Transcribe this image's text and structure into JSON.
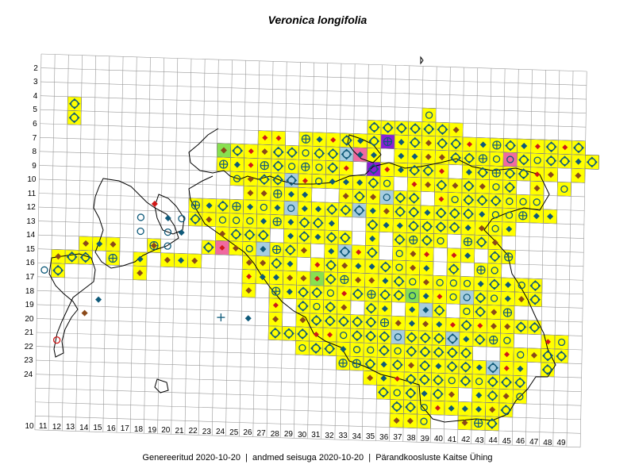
{
  "map": {
    "title": "Veronica longifolia",
    "footer": {
      "generated": "Genereeritud 2020-10-20",
      "data_state": "andmed seisuga 2020-10-20",
      "organization": "Pärandkoosluste Kaitse Ühing"
    },
    "row_labels": [
      "2",
      "3",
      "4",
      "5",
      "6",
      "7",
      "8",
      "9",
      "10",
      "11",
      "12",
      "13",
      "14",
      "15",
      "16",
      "17",
      "18",
      "19",
      "20",
      "21",
      "22",
      "23",
      "24"
    ],
    "col_labels": [
      "10",
      "11",
      "12",
      "13",
      "14",
      "15",
      "16",
      "17",
      "18",
      "19",
      "20",
      "21",
      "22",
      "23",
      "24",
      "25",
      "26",
      "27",
      "28",
      "29",
      "30",
      "31",
      "32",
      "33",
      "34",
      "35",
      "36",
      "37",
      "38",
      "39",
      "40",
      "41",
      "42",
      "43",
      "44",
      "45",
      "46",
      "47",
      "48",
      "49"
    ],
    "colors": {
      "occupied": "#ffff00",
      "pink": "#f06aa0",
      "light_blue": "#a6cde0",
      "purple": "#8a1fd6",
      "green": "#88e050",
      "dark_red": "#c8283c",
      "grid": "#999999",
      "marker_blue": "#0f5a7a",
      "marker_brown": "#8b4a1a",
      "marker_red": "#d01818"
    }
  }
}
